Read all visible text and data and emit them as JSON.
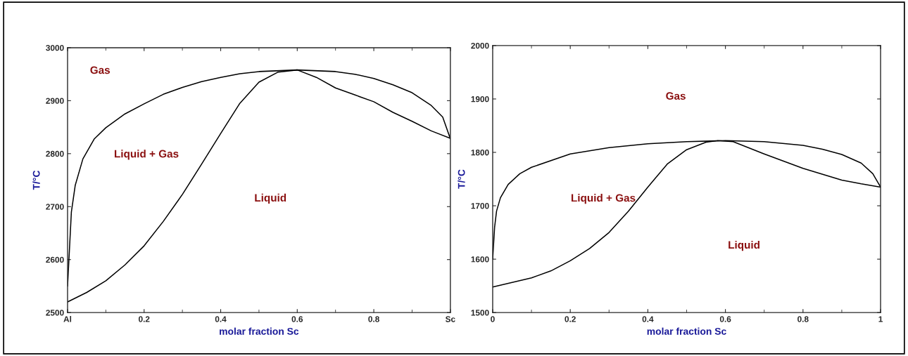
{
  "chart_data": [
    {
      "type": "line",
      "xlabel": "molar fraction Sc",
      "ylabel": "T/°C",
      "xlim": [
        0,
        1
      ],
      "ylim": [
        2500,
        3000
      ],
      "xticks": [
        {
          "value": 0,
          "label": "Al"
        },
        0.2,
        0.4,
        0.6,
        0.8,
        {
          "value": 1,
          "label": "Sc"
        }
      ],
      "yticks": [
        2500,
        2600,
        2700,
        2800,
        2900,
        3000
      ],
      "grid": false,
      "legend": false,
      "series": [
        {
          "color": "#000000",
          "x": [
            0,
            0.005,
            0.01,
            0.02,
            0.04,
            0.07,
            0.1,
            0.15,
            0.2,
            0.25,
            0.3,
            0.35,
            0.4,
            0.45,
            0.5,
            0.6,
            0.7,
            0.75,
            0.8,
            0.85,
            0.9,
            0.95,
            0.98,
            1
          ],
          "values": [
            2550,
            2620,
            2690,
            2740,
            2790,
            2828,
            2849,
            2875,
            2894,
            2912,
            2925,
            2936,
            2944,
            2951,
            2955,
            2958,
            2955,
            2950,
            2942,
            2930,
            2915,
            2891,
            2869,
            2828
          ]
        },
        {
          "color": "#000000",
          "x": [
            0,
            0.05,
            0.1,
            0.15,
            0.2,
            0.25,
            0.3,
            0.35,
            0.4,
            0.45,
            0.5,
            0.55,
            0.6,
            0.65,
            0.7,
            0.75,
            0.8,
            0.85,
            0.9,
            0.95,
            1
          ],
          "values": [
            2520,
            2538,
            2560,
            2590,
            2626,
            2672,
            2723,
            2780,
            2838,
            2895,
            2935,
            2954,
            2958,
            2944,
            2924,
            2911,
            2898,
            2878,
            2861,
            2843,
            2829
          ]
        }
      ],
      "annotations": [
        "Gas",
        "Liquid + Gas",
        "Liquid"
      ]
    },
    {
      "type": "line",
      "xlabel": "molar fraction Sc",
      "ylabel": "T/°C",
      "xlim": [
        0,
        1
      ],
      "ylim": [
        1500,
        2000
      ],
      "xticks": [
        0,
        0.2,
        0.4,
        0.6,
        0.8,
        1
      ],
      "yticks": [
        1500,
        1600,
        1700,
        1800,
        1900,
        2000
      ],
      "grid": false,
      "legend": false,
      "series": [
        {
          "color": "#000000",
          "x": [
            0,
            0.005,
            0.01,
            0.02,
            0.04,
            0.07,
            0.1,
            0.2,
            0.3,
            0.4,
            0.5,
            0.6,
            0.7,
            0.8,
            0.85,
            0.9,
            0.95,
            0.98,
            1
          ],
          "values": [
            1600,
            1660,
            1690,
            1715,
            1740,
            1760,
            1772,
            1797,
            1809,
            1816,
            1820,
            1822,
            1820,
            1813,
            1806,
            1796,
            1780,
            1760,
            1735
          ]
        },
        {
          "color": "#000000",
          "x": [
            0,
            0.1,
            0.15,
            0.2,
            0.25,
            0.3,
            0.35,
            0.4,
            0.45,
            0.5,
            0.55,
            0.58,
            0.62,
            0.7,
            0.8,
            0.9,
            0.95,
            1
          ],
          "values": [
            1548,
            1565,
            1578,
            1597,
            1620,
            1650,
            1690,
            1735,
            1778,
            1805,
            1819,
            1822,
            1820,
            1797,
            1770,
            1748,
            1741,
            1735
          ]
        }
      ],
      "annotations": [
        "Gas",
        "Liquid + Gas",
        "Liquid"
      ]
    }
  ]
}
